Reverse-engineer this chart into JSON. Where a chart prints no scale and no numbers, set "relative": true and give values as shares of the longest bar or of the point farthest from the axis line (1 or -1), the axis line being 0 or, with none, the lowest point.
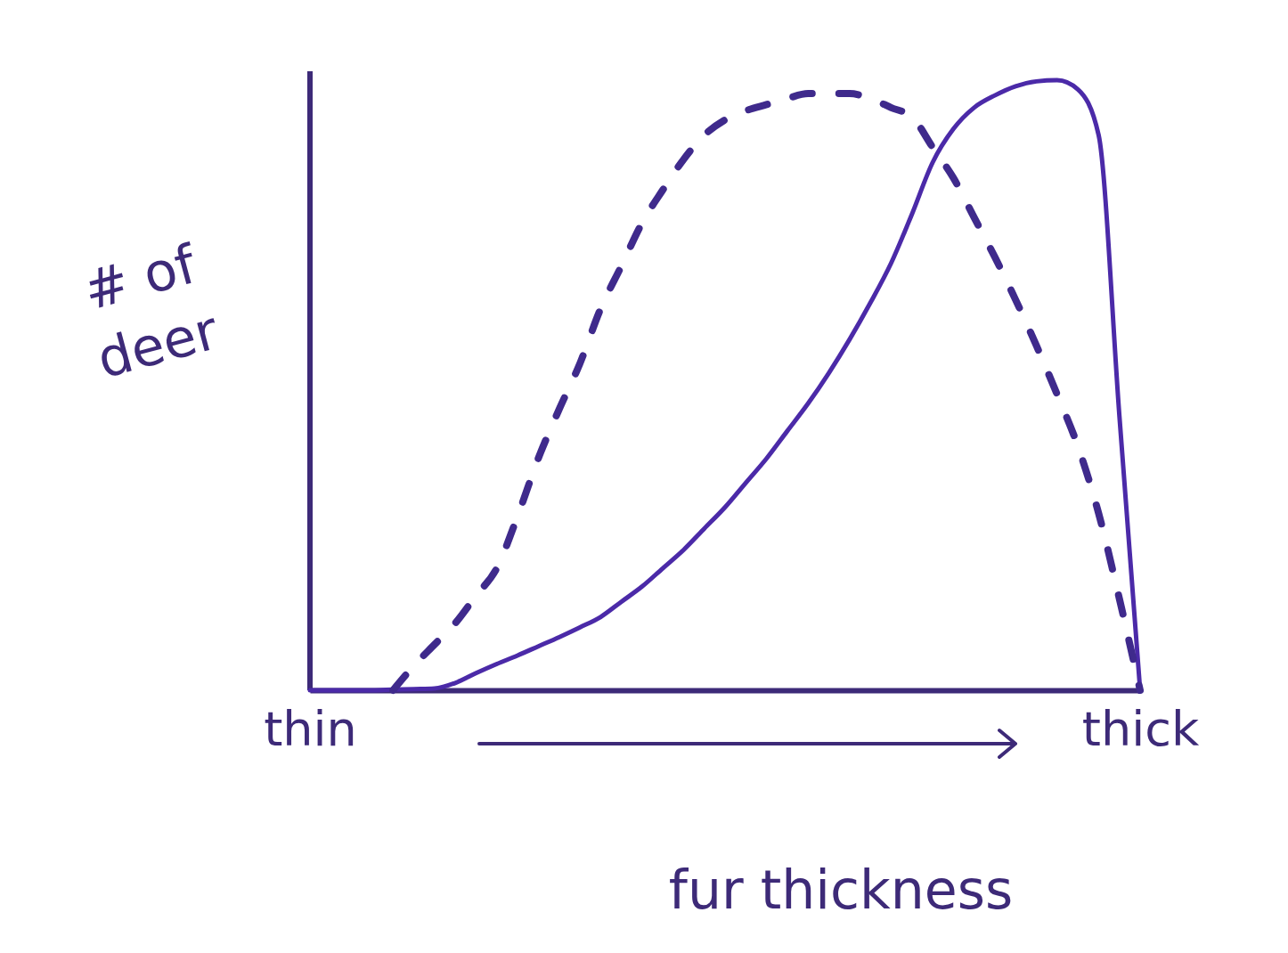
{
  "chart_data": {
    "type": "line",
    "relative": true,
    "xlabel": "fur thickness",
    "ylabel": "# of deer",
    "categories": [
      "thin",
      null,
      null,
      null,
      null,
      null,
      null,
      null,
      null,
      null,
      null,
      null,
      null,
      null,
      null,
      null,
      null,
      null,
      null,
      null,
      null,
      null,
      null,
      null,
      null,
      null,
      null,
      null,
      null,
      null,
      null,
      null,
      null,
      null,
      null,
      null,
      null,
      null,
      null,
      null,
      "thick"
    ],
    "series": [
      {
        "color": "#4b2aa8",
        "line_style": "solid",
        "values": [
          0,
          0,
          0,
          0,
          0.001,
          0.002,
          0.003,
          0.012,
          0.028,
          0.043,
          0.057,
          0.072,
          0.087,
          0.103,
          0.12,
          0.145,
          0.17,
          0.2,
          0.23,
          0.265,
          0.3,
          0.34,
          0.38,
          0.425,
          0.47,
          0.52,
          0.575,
          0.635,
          0.7,
          0.78,
          0.865,
          0.92,
          0.955,
          0.975,
          0.99,
          0.998,
          1,
          0.985,
          0.91,
          0.45,
          0
        ]
      },
      {
        "color": "#3f2a8c",
        "line_style": "dashed",
        "values": [
          null,
          null,
          null,
          null,
          0,
          0.04,
          0.075,
          0.11,
          0.155,
          0.2,
          0.285,
          0.38,
          0.46,
          0.535,
          0.625,
          0.695,
          0.766,
          0.82,
          0.87,
          0.91,
          0.935,
          0.95,
          0.96,
          0.97,
          0.978,
          0.978,
          0.978,
          0.97,
          0.955,
          0.94,
          0.89,
          0.84,
          0.775,
          0.71,
          0.64,
          0.565,
          0.485,
          0.4,
          0.29,
          0.15,
          0
        ]
      }
    ]
  }
}
